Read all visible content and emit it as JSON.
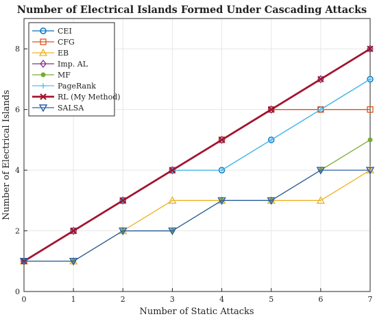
{
  "chart_data": {
    "type": "line",
    "title": "Number of Electrical Islands Formed Under Cascading Attacks",
    "xlabel": "Number of Static Attacks",
    "ylabel": "Number of Electrical Islands",
    "x": [
      0,
      1,
      2,
      3,
      4,
      5,
      6,
      7
    ],
    "xlim": [
      0,
      7
    ],
    "ylim": [
      0,
      9
    ],
    "xticks": [
      "0",
      "1",
      "2",
      "3",
      "4",
      "5",
      "6",
      "7"
    ],
    "yticks": [
      "0",
      "2",
      "4",
      "6",
      "8"
    ],
    "grid": true,
    "legend_position": "top-left",
    "series": [
      {
        "name": "CEI",
        "color": "#0072BD",
        "marker": "circle",
        "values": [
          1,
          2,
          3,
          4,
          4,
          5,
          6,
          7
        ]
      },
      {
        "name": "CFG",
        "color": "#D95319",
        "marker": "square",
        "values": [
          1,
          2,
          3,
          4,
          5,
          6,
          6,
          6
        ]
      },
      {
        "name": "EB",
        "color": "#EDB120",
        "marker": "triangle-up",
        "values": [
          1,
          1,
          2,
          3,
          3,
          3,
          3,
          4
        ]
      },
      {
        "name": "Imp. AL",
        "color": "#7E2F8E",
        "marker": "diamond",
        "values": [
          1,
          2,
          3,
          4,
          5,
          6,
          7,
          8
        ]
      },
      {
        "name": "MF",
        "color": "#77AC30",
        "marker": "dot",
        "values": [
          1,
          1,
          2,
          2,
          3,
          3,
          4,
          5
        ]
      },
      {
        "name": "PageRank",
        "color": "#4DBEEE",
        "marker": "plus",
        "values": [
          1,
          2,
          3,
          4,
          4,
          5,
          6,
          7
        ]
      },
      {
        "name": "RL (My Method)",
        "color": "#A2142F",
        "marker": "x",
        "values": [
          1,
          2,
          3,
          4,
          5,
          6,
          7,
          8
        ]
      },
      {
        "name": "SALSA",
        "color": "#2F5FA8",
        "marker": "triangle-down",
        "values": [
          1,
          1,
          2,
          2,
          3,
          3,
          4,
          4
        ]
      }
    ]
  }
}
